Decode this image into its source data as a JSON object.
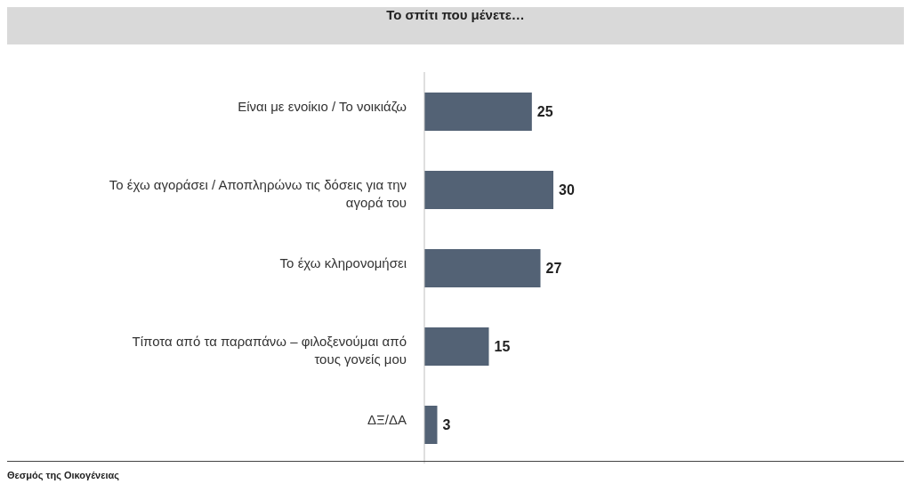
{
  "chart_data": {
    "type": "bar",
    "orientation": "horizontal",
    "title": "Το σπίτι που μένετε…",
    "categories": [
      "Είναι με ενοίκιο / Το νοικιάζω",
      "Το έχω αγοράσει / Αποπληρώνω τις δόσεις για την αγορά του",
      "Το έχω κληρονομήσει",
      "Τίποτα από τα παραπάνω – φιλοξενούμαι από τους γονείς μου",
      "ΔΞ/ΔΑ"
    ],
    "values": [
      25,
      30,
      27,
      15,
      3
    ],
    "color": "#536275",
    "data_labels": true,
    "tick_labels": "y",
    "annotations": [
      "Θεσμός της Οικογένειας"
    ]
  }
}
